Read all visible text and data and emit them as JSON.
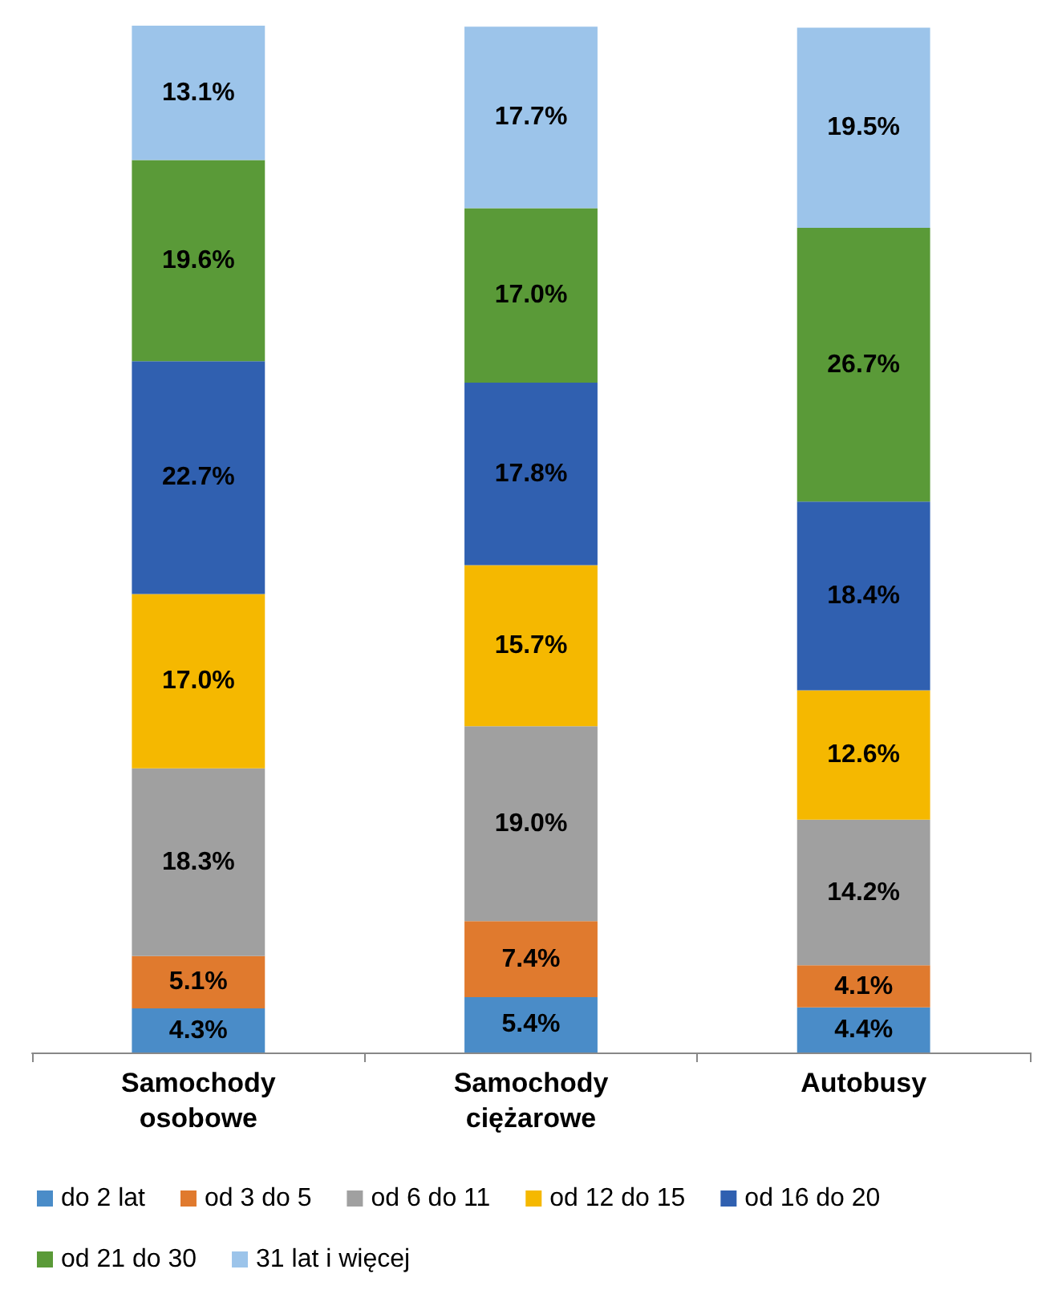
{
  "chart_data": {
    "type": "bar",
    "stacked": true,
    "categories": [
      "Samochody\nosobowe",
      "Samochody\nciężarowe",
      "Autobusy"
    ],
    "series": [
      {
        "name": "do 2 lat",
        "color": "#4a8cc8",
        "values": [
          4.3,
          5.4,
          4.4
        ],
        "value_labels": [
          "4.3%",
          "5.4%",
          "4.4%"
        ]
      },
      {
        "name": "od 3 do 5",
        "color": "#e07a2e",
        "values": [
          5.1,
          7.4,
          4.1
        ],
        "value_labels": [
          "5.1%",
          "7.4%",
          "4.1%"
        ]
      },
      {
        "name": "od 6 do 11",
        "color": "#a0a0a0",
        "values": [
          18.3,
          19.0,
          14.2
        ],
        "value_labels": [
          "18.3%",
          "19.0%",
          "14.2%"
        ]
      },
      {
        "name": "od 12 do 15",
        "color": "#f5b800",
        "values": [
          17.0,
          15.7,
          12.6
        ],
        "value_labels": [
          "17.0%",
          "15.7%",
          "12.6%"
        ]
      },
      {
        "name": "od 16 do 20",
        "color": "#3060b0",
        "values": [
          22.7,
          17.8,
          18.4
        ],
        "value_labels": [
          "22.7%",
          "17.8%",
          "18.4%"
        ]
      },
      {
        "name": "od 21 do 30",
        "color": "#5a9a38",
        "values": [
          19.6,
          17.0,
          26.7
        ],
        "value_labels": [
          "19.6%",
          "17.0%",
          "26.7%"
        ]
      },
      {
        "name": "31 lat i więcej",
        "color": "#9cc4ea",
        "values": [
          13.1,
          17.7,
          19.5
        ],
        "value_labels": [
          "13.1%",
          "17.7%",
          "19.5%"
        ]
      }
    ],
    "legend": "bottom",
    "tick_labels": "x"
  }
}
